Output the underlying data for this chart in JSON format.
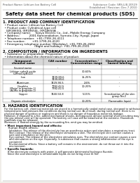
{
  "bg_color": "#f0ede8",
  "page_bg": "#ffffff",
  "header_left": "Product Name: Lithium Ion Battery Cell",
  "header_right_top": "Substance Code: SRS-LIB-20519",
  "header_right_bot": "Established / Revision: Dec.7.2010",
  "title": "Safety data sheet for chemical products (SDS)",
  "section1_title": "1. PRODUCT AND COMPANY IDENTIFICATION",
  "section1_lines": [
    "  • Product name: Lithium Ion Battery Cell",
    "  • Product code: Cylindrical-type cell",
    "    IXR18650J, IXR18650L, IXR18650A",
    "  • Company name:     Sanyo Electric Co., Ltd., Mobile Energy Company",
    "  • Address:           2001 Kamionakahon, Sumoto-City, Hyogo, Japan",
    "  • Telephone number:  +81-(799)-26-4111",
    "  • Fax number:        +81-1799-26-4120",
    "  • Emergency telephone number (Weekday): +81-799-26-2662",
    "                                    (Night and holiday): +81-799-26-2101"
  ],
  "section2_title": "2. COMPOSITION / INFORMATION ON INGREDIENTS",
  "section2_intro": "  • Substance or preparation: Preparation",
  "section2_sub": "  • Information about the chemical nature of product:",
  "table_headers": [
    "Component\nchemical name",
    "CAS number",
    "Concentration /\nConcentration range",
    "Classification and\nhazard labeling"
  ],
  "table_col1": [
    "Several name",
    "Lithium cobalt oxide\n(LiMnxCoyNiO2)",
    "Iron",
    "Aluminum",
    "Graphite\n(Metal in graphite-1)\n(Al-Mo in graphite-1)",
    "Copper",
    "Organic electrolyte"
  ],
  "table_col2": [
    "-",
    "-",
    "7439-89-6\n7439-89-6",
    "7429-90-5",
    "7782-42-5\n7782-42-5",
    "7440-50-8",
    "-"
  ],
  "table_col3": [
    "",
    "30-60%",
    "15-25%",
    "2-6%",
    "10-20%",
    "5-15%",
    "10-20%"
  ],
  "table_col4": [
    "",
    "",
    "-",
    "-",
    "-",
    "Sensitization of the skin\ngroup No.2",
    "Flammable liquid"
  ],
  "section3_title": "3. HAZARDS IDENTIFICATION",
  "section3_para1": [
    "  For the battery cell, chemical materials are stored in a hermetically sealed metal case, designed to withstand",
    "  temperatures and pressure-like conditions during normal use. As a result, during normal use, there is no",
    "  physical danger of ignition or explosion and there is no danger of hazardous materials leakage.",
    "  However, if exposed to a fire, added mechanical shocks, decomposed, almost external short-circuiting may cause,",
    "  the gas release vent will be operated. The battery cell case will be breached at the extreme. Hazardous",
    "  materials may be released.",
    "  Moreover, if heated strongly by the surrounding fire, emit gas may be emitted."
  ],
  "section3_bullet1": "  • Most important hazard and effects:",
  "section3_health": "      Human health effects:",
  "section3_health_lines": [
    "        Inhalation: The release of the electrolyte has an anesthesia action and stimulates a respiratory tract.",
    "        Skin contact: The release of the electrolyte stimulates a skin. The electrolyte skin contact causes a",
    "        sore and stimulation on the skin.",
    "        Eye contact: The release of the electrolyte stimulates eyes. The electrolyte eye contact causes a sore",
    "        and stimulation on the eye. Especially, a substance that causes a strong inflammation of the eye is",
    "        contained.",
    "        Environmental effects: Since a battery cell remains in the environment, do not throw out it into the",
    "        environment."
  ],
  "section3_bullet2": "  • Specific hazards:",
  "section3_specific": [
    "      If the electrolyte contacts with water, it will generate detrimental hydrogen fluoride.",
    "      Since the seal electrolyte is inflammable liquid, do not bring close to fire."
  ]
}
